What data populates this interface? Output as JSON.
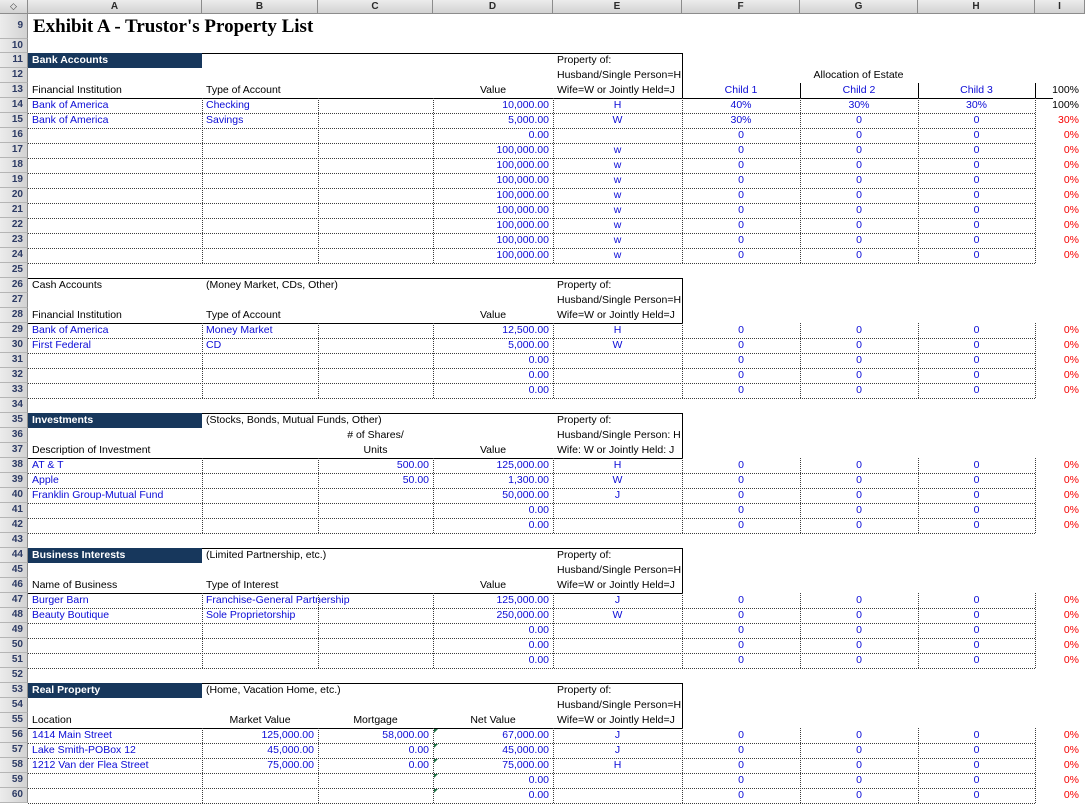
{
  "sheet": {
    "corner": "◇",
    "columns": [
      "A",
      "B",
      "C",
      "D",
      "E",
      "F",
      "G",
      "H",
      "I"
    ],
    "first_row": 9,
    "last_row": 60
  },
  "title": {
    "text": "Exhibit A - Trustor's Property List"
  },
  "colors": {
    "section_fill": "#17375c",
    "data_blue": "#0b0bd6",
    "alert_red": "#f70000"
  },
  "sections": [
    {
      "title": "Bank Accounts",
      "title_row": 11,
      "fill": "navy",
      "note": "",
      "property_lines": [
        "Property of:",
        "Husband/Single Person=H",
        "Wife=W or Jointly Held=J"
      ],
      "labels": [
        {
          "col": "A",
          "text": "Financial Institution"
        },
        {
          "col": "B",
          "text": "Type of Account"
        },
        {
          "col": "D",
          "text": "Value",
          "align": "center"
        }
      ],
      "allocation": {
        "title": "Allocation of Estate",
        "children": [
          "Child 1",
          "Child 2",
          "Child 3"
        ],
        "total": "100%"
      },
      "rows": [
        {
          "r": 14,
          "A": "Bank of America",
          "B": "Checking",
          "D": "10,000.00",
          "E": "H",
          "F": "40%",
          "G": "30%",
          "H": "30%",
          "I": "100%",
          "I_black": true
        },
        {
          "r": 15,
          "A": "Bank of America",
          "B": "Savings",
          "D": "5,000.00",
          "E": "W",
          "F": "30%",
          "G": "0",
          "H": "0",
          "I": "30%"
        },
        {
          "r": 16,
          "D": "0.00",
          "F": "0",
          "G": "0",
          "H": "0",
          "I": "0%"
        },
        {
          "r": 17,
          "D": "100,000.00",
          "E": "w",
          "F": "0",
          "G": "0",
          "H": "0",
          "I": "0%"
        },
        {
          "r": 18,
          "D": "100,000.00",
          "E": "w",
          "F": "0",
          "G": "0",
          "H": "0",
          "I": "0%"
        },
        {
          "r": 19,
          "D": "100,000.00",
          "E": "w",
          "F": "0",
          "G": "0",
          "H": "0",
          "I": "0%"
        },
        {
          "r": 20,
          "D": "100,000.00",
          "E": "w",
          "F": "0",
          "G": "0",
          "H": "0",
          "I": "0%"
        },
        {
          "r": 21,
          "D": "100,000.00",
          "E": "w",
          "F": "0",
          "G": "0",
          "H": "0",
          "I": "0%"
        },
        {
          "r": 22,
          "D": "100,000.00",
          "E": "w",
          "F": "0",
          "G": "0",
          "H": "0",
          "I": "0%"
        },
        {
          "r": 23,
          "D": "100,000.00",
          "E": "w",
          "F": "0",
          "G": "0",
          "H": "0",
          "I": "0%"
        },
        {
          "r": 24,
          "D": "100,000.00",
          "E": "w",
          "F": "0",
          "G": "0",
          "H": "0",
          "I": "0%"
        }
      ]
    },
    {
      "title": "Cash Accounts",
      "title_row": 26,
      "fill": "plain",
      "note": "(Money Market, CDs, Other)",
      "property_lines": [
        "Property of:",
        "Husband/Single Person=H",
        "Wife=W or Jointly Held=J"
      ],
      "labels": [
        {
          "col": "A",
          "text": "Financial Institution"
        },
        {
          "col": "B",
          "text": "Type of Account"
        },
        {
          "col": "D",
          "text": "Value",
          "align": "center"
        }
      ],
      "rows": [
        {
          "r": 29,
          "A": "Bank of America",
          "B": "Money Market",
          "D": "12,500.00",
          "E": "H",
          "F": "0",
          "G": "0",
          "H": "0",
          "I": "0%"
        },
        {
          "r": 30,
          "A": "First Federal",
          "B": "CD",
          "D": "5,000.00",
          "E": "W",
          "F": "0",
          "G": "0",
          "H": "0",
          "I": "0%"
        },
        {
          "r": 31,
          "D": "0.00",
          "F": "0",
          "G": "0",
          "H": "0",
          "I": "0%"
        },
        {
          "r": 32,
          "D": "0.00",
          "F": "0",
          "G": "0",
          "H": "0",
          "I": "0%"
        },
        {
          "r": 33,
          "D": "0.00",
          "F": "0",
          "G": "0",
          "H": "0",
          "I": "0%"
        }
      ]
    },
    {
      "title": "Investments",
      "title_row": 35,
      "fill": "navy",
      "note": "(Stocks, Bonds, Mutual Funds, Other)",
      "property_lines": [
        "Property of:",
        "Husband/Single Person: H",
        "Wife: W or Jointly Held: J"
      ],
      "mid_labels": [
        {
          "col": "C",
          "text": "# of Shares/",
          "align": "center"
        }
      ],
      "labels": [
        {
          "col": "A",
          "text": "Description of Investment"
        },
        {
          "col": "C",
          "text": "Units",
          "align": "center"
        },
        {
          "col": "D",
          "text": "Value",
          "align": "center"
        }
      ],
      "rows": [
        {
          "r": 38,
          "A": "AT & T",
          "C": "500.00",
          "D": "125,000.00",
          "E": "H",
          "F": "0",
          "G": "0",
          "H": "0",
          "I": "0%"
        },
        {
          "r": 39,
          "A": "Apple",
          "C": "50.00",
          "D": "1,300.00",
          "E": "W",
          "F": "0",
          "G": "0",
          "H": "0",
          "I": "0%"
        },
        {
          "r": 40,
          "A": "Franklin Group-Mutual Fund",
          "D": "50,000.00",
          "E": "J",
          "F": "0",
          "G": "0",
          "H": "0",
          "I": "0%"
        },
        {
          "r": 41,
          "D": "0.00",
          "F": "0",
          "G": "0",
          "H": "0",
          "I": "0%"
        },
        {
          "r": 42,
          "D": "0.00",
          "F": "0",
          "G": "0",
          "H": "0",
          "I": "0%"
        }
      ]
    },
    {
      "title": "Business Interests",
      "title_row": 44,
      "fill": "navy",
      "note": "(Limited Partnership, etc.)",
      "property_lines": [
        "Property of:",
        "Husband/Single Person=H",
        "Wife=W or Jointly Held=J"
      ],
      "labels": [
        {
          "col": "A",
          "text": "Name of Business"
        },
        {
          "col": "B",
          "text": "Type of Interest"
        },
        {
          "col": "D",
          "text": "Value",
          "align": "center"
        }
      ],
      "rows": [
        {
          "r": 47,
          "A": "Burger Barn",
          "B": "Franchise-General Partnership",
          "D": "125,000.00",
          "E": "J",
          "F": "0",
          "G": "0",
          "H": "0",
          "I": "0%"
        },
        {
          "r": 48,
          "A": "Beauty Boutique",
          "B": "Sole Proprietorship",
          "D": "250,000.00",
          "E": "W",
          "F": "0",
          "G": "0",
          "H": "0",
          "I": "0%"
        },
        {
          "r": 49,
          "D": "0.00",
          "F": "0",
          "G": "0",
          "H": "0",
          "I": "0%"
        },
        {
          "r": 50,
          "D": "0.00",
          "F": "0",
          "G": "0",
          "H": "0",
          "I": "0%"
        },
        {
          "r": 51,
          "D": "0.00",
          "F": "0",
          "G": "0",
          "H": "0",
          "I": "0%"
        }
      ]
    },
    {
      "title": "Real Property",
      "title_row": 53,
      "fill": "navy",
      "note": "(Home, Vacation Home, etc.)",
      "property_lines": [
        "Property of:",
        "Husband/Single Person=H",
        "Wife=W or Jointly Held=J"
      ],
      "labels": [
        {
          "col": "A",
          "text": "Location"
        },
        {
          "col": "B",
          "text": "Market Value",
          "align": "center"
        },
        {
          "col": "C",
          "text": "Mortgage",
          "align": "center"
        },
        {
          "col": "D",
          "text": "Net Value",
          "align": "center"
        }
      ],
      "rows": [
        {
          "r": 56,
          "A": "1414 Main Street",
          "B": "125,000.00",
          "C": "58,000.00",
          "D": "67,000.00",
          "E": "J",
          "F": "0",
          "G": "0",
          "H": "0",
          "I": "0%",
          "marker": true
        },
        {
          "r": 57,
          "A": "Lake Smith-POBox 12",
          "B": "45,000.00",
          "C": "0.00",
          "D": "45,000.00",
          "E": "J",
          "F": "0",
          "G": "0",
          "H": "0",
          "I": "0%",
          "marker": true
        },
        {
          "r": 58,
          "A": "1212 Van der Flea Street",
          "B": "75,000.00",
          "C": "0.00",
          "D": "75,000.00",
          "E": "H",
          "F": "0",
          "G": "0",
          "H": "0",
          "I": "0%",
          "marker": true
        },
        {
          "r": 59,
          "D": "0.00",
          "F": "0",
          "G": "0",
          "H": "0",
          "I": "0%",
          "marker": true
        },
        {
          "r": 60,
          "D": "0.00",
          "F": "0",
          "G": "0",
          "H": "0",
          "I": "0%",
          "marker": true
        }
      ]
    }
  ]
}
